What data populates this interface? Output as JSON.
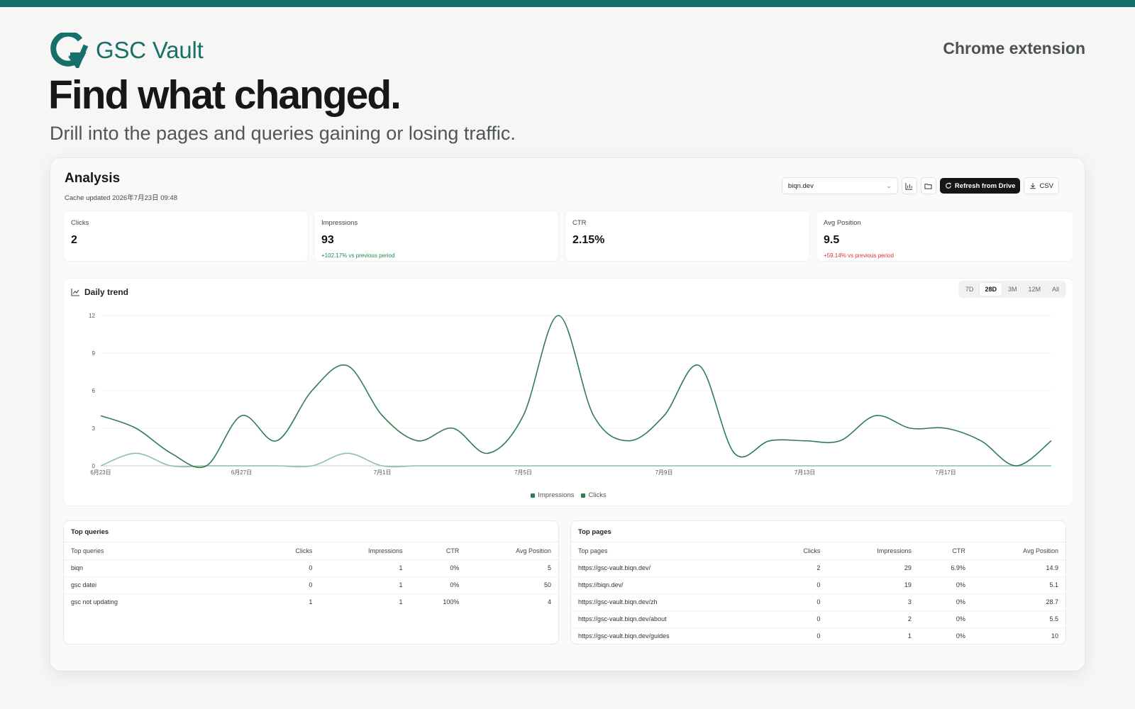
{
  "brand": {
    "name": "GSC Vault",
    "accent": "#15706a"
  },
  "header": {
    "extension_link": "Chrome extension"
  },
  "hero": {
    "title": "Find what changed.",
    "subtitle": "Drill into the pages and queries gaining or losing traffic."
  },
  "panel": {
    "title": "Analysis",
    "cache_updated": "Cache updated 2026年7月23日 09:48",
    "site_select": "biqn.dev",
    "refresh_label": "Refresh from Drive",
    "csv_label": "CSV",
    "icons": [
      "chart-icon",
      "folder-icon",
      "refresh-icon",
      "download-icon",
      "chevron-down-icon"
    ]
  },
  "kpis": [
    {
      "label": "Clicks",
      "value": "2",
      "delta": "",
      "delta_color": ""
    },
    {
      "label": "Impressions",
      "value": "93",
      "delta": "+102.17% vs previous period",
      "delta_color": "#1f8a4c"
    },
    {
      "label": "CTR",
      "value": "2.15%",
      "delta": "",
      "delta_color": ""
    },
    {
      "label": "Avg Position",
      "value": "9.5",
      "delta": "+59.14% vs previous period",
      "delta_color": "#e0312d"
    }
  ],
  "trend": {
    "title": "Daily trend",
    "ranges": [
      "7D",
      "28D",
      "3M",
      "12M",
      "All"
    ],
    "active_range": "28D"
  },
  "chart_data": {
    "type": "line",
    "x": [
      "6月23日",
      "6月24日",
      "6月25日",
      "6月26日",
      "6月27日",
      "6月28日",
      "6月29日",
      "6月30日",
      "7月1日",
      "7月2日",
      "7月3日",
      "7月4日",
      "7月5日",
      "7月6日",
      "7月7日",
      "7月8日",
      "7月9日",
      "7月10日",
      "7月11日",
      "7月12日",
      "7月13日",
      "7月14日",
      "7月15日",
      "7月16日",
      "7月17日",
      "7月18日",
      "7月19日",
      "7月20日"
    ],
    "tick_labels": [
      "6月23日",
      "6月27日",
      "7月1日",
      "7月5日",
      "7月9日",
      "7月13日",
      "7月17日"
    ],
    "series": [
      {
        "name": "Impressions",
        "color": "#2f7d4f",
        "values": [
          4,
          3,
          1,
          0,
          4,
          2,
          6,
          8,
          4,
          2,
          3,
          1,
          4,
          12,
          4,
          2,
          4,
          8,
          1,
          2,
          2,
          2,
          4,
          3,
          3,
          2,
          0,
          2
        ]
      },
      {
        "name": "Clicks",
        "color": "#8cc1a0",
        "values": [
          0,
          1,
          0,
          0,
          0,
          0,
          0,
          1,
          0,
          0,
          0,
          0,
          0,
          0,
          0,
          0,
          0,
          0,
          0,
          0,
          0,
          0,
          0,
          0,
          0,
          0,
          0,
          0
        ]
      }
    ],
    "yticks": [
      0,
      3,
      6,
      9,
      12
    ],
    "ylim": [
      0,
      12
    ],
    "grid": true,
    "legend": "bottom"
  },
  "top_queries": {
    "title": "Top queries",
    "columns": [
      "Top queries",
      "Clicks",
      "Impressions",
      "CTR",
      "Avg Position"
    ],
    "rows": [
      [
        "biqn",
        "0",
        "1",
        "0%",
        "5"
      ],
      [
        "gsc datei",
        "0",
        "1",
        "0%",
        "50"
      ],
      [
        "gsc not updating",
        "1",
        "1",
        "100%",
        "4"
      ]
    ]
  },
  "top_pages": {
    "title": "Top pages",
    "columns": [
      "Top pages",
      "Clicks",
      "Impressions",
      "CTR",
      "Avg Position"
    ],
    "rows": [
      [
        "https://gsc-vault.biqn.dev/",
        "2",
        "29",
        "6.9%",
        "14.9"
      ],
      [
        "https://biqn.dev/",
        "0",
        "19",
        "0%",
        "5.1"
      ],
      [
        "https://gsc-vault.biqn.dev/zh",
        "0",
        "3",
        "0%",
        "28.7"
      ],
      [
        "https://gsc-vault.biqn.dev/about",
        "0",
        "2",
        "0%",
        "5.5"
      ],
      [
        "https://gsc-vault.biqn.dev/guides",
        "0",
        "1",
        "0%",
        "10"
      ]
    ]
  }
}
